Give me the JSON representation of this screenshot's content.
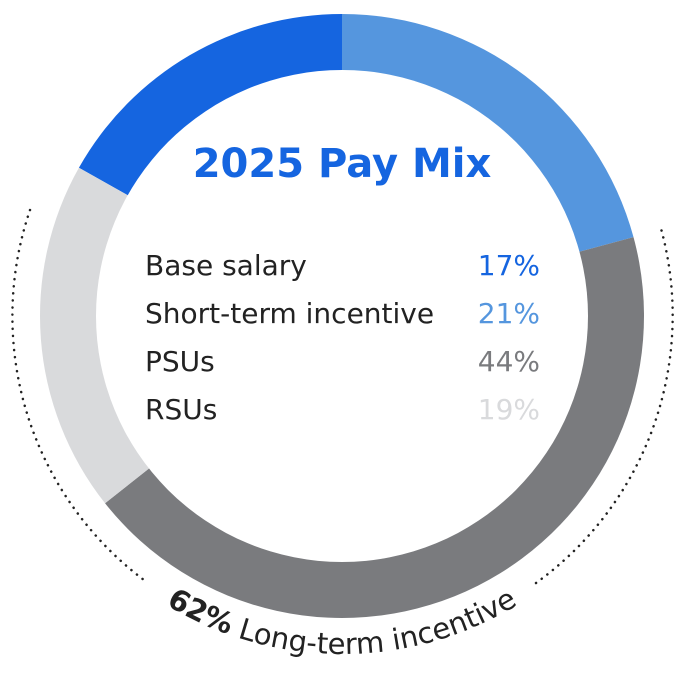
{
  "chart_data": {
    "type": "donut",
    "title": "2025 Pay Mix",
    "categories": [
      "Base salary",
      "Short-term incentive",
      "PSUs",
      "RSUs"
    ],
    "values": [
      17,
      21,
      44,
      19
    ],
    "value_labels": [
      "17%",
      "21%",
      "44%",
      "19%"
    ],
    "colors": [
      "#1565e0",
      "#5596de",
      "#7a7b7e",
      "#d9dadc"
    ],
    "annotation_emphasis": "62%",
    "annotation": "Long-term incentive"
  }
}
